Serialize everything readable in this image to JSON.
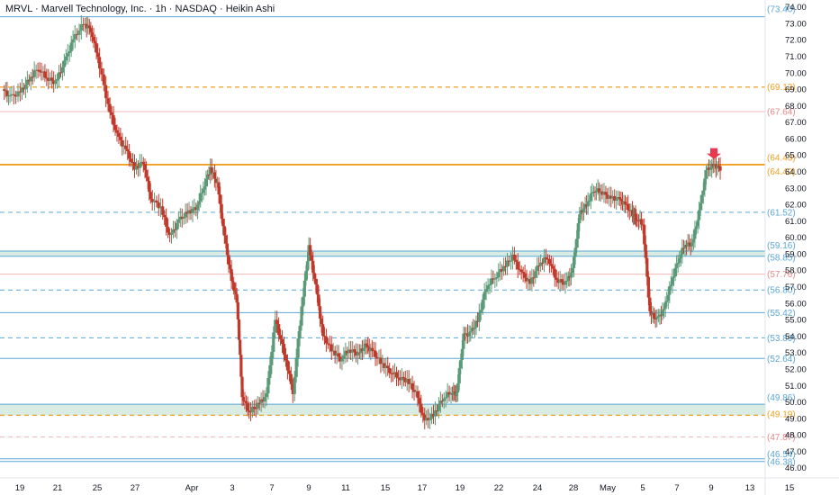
{
  "header": {
    "title": "MRVL · Marvell Technology, Inc. · 1h · NASDAQ · Heikin Ashi"
  },
  "colors": {
    "up": "#5b9a78",
    "down": "#c0392b",
    "blue_line": "#5aa6d6",
    "orange_line": "#f0a020",
    "pink_line": "#f2b8b8",
    "teal_zone": "#d8ece4",
    "arrow": "#e8384f"
  },
  "chart_data": {
    "type": "candlestick",
    "title": "MRVL · Marvell Technology, Inc. · 1h · NASDAQ · Heikin Ashi",
    "ylim": [
      45.6,
      74.2
    ],
    "y_ticks": [
      "74.00",
      "73.00",
      "72.00",
      "71.00",
      "70.00",
      "69.00",
      "68.00",
      "67.00",
      "66.00",
      "65.00",
      "64.00",
      "63.00",
      "62.00",
      "61.00",
      "60.00",
      "59.00",
      "58.00",
      "57.00",
      "56.00",
      "55.00",
      "54.00",
      "53.00",
      "52.00",
      "51.00",
      "50.00",
      "49.00",
      "48.00",
      "47.00",
      "46.00"
    ],
    "x_ticks": [
      "19",
      "21",
      "25",
      "27",
      "Apr",
      "3",
      "7",
      "9",
      "11",
      "15",
      "17",
      "19",
      "22",
      "24",
      "28",
      "May",
      "5",
      "7",
      "9",
      "13",
      "15"
    ],
    "zones": [
      {
        "from": 58.85,
        "to": 59.16
      },
      {
        "from": 49.19,
        "to": 49.86
      }
    ],
    "levels": [
      {
        "value": 73.4,
        "label": "(73.40)",
        "style": "solid",
        "color": "blue"
      },
      {
        "value": 69.13,
        "label": "(69.13)",
        "style": "dashed",
        "color": "orange"
      },
      {
        "value": 67.64,
        "label": "(67.64)",
        "style": "solid",
        "color": "pink"
      },
      {
        "value": 64.43,
        "label": "(64.43)",
        "style": "solid",
        "color": "orange"
      },
      {
        "value": 64.4,
        "label": "(64.40)",
        "style": "solid",
        "color": "orange"
      },
      {
        "value": 61.52,
        "label": "(61.52)",
        "style": "dashed",
        "color": "blue"
      },
      {
        "value": 59.16,
        "label": "(59.16)",
        "style": "solid",
        "color": "blue"
      },
      {
        "value": 58.85,
        "label": "(58.85)",
        "style": "solid",
        "color": "blue"
      },
      {
        "value": 57.76,
        "label": "(57.76)",
        "style": "solid",
        "color": "pink"
      },
      {
        "value": 56.8,
        "label": "(56.80)",
        "style": "dashed",
        "color": "blue"
      },
      {
        "value": 55.42,
        "label": "(55.42)",
        "style": "solid",
        "color": "blue"
      },
      {
        "value": 53.89,
        "label": "(53.89)",
        "style": "dashed",
        "color": "blue"
      },
      {
        "value": 52.64,
        "label": "(52.64)",
        "style": "solid",
        "color": "blue"
      },
      {
        "value": 49.86,
        "label": "(49.86)",
        "style": "solid",
        "color": "blue"
      },
      {
        "value": 49.19,
        "label": "(49.19)",
        "style": "dashed",
        "color": "orange"
      },
      {
        "value": 47.87,
        "label": "(47.87)",
        "style": "dashed",
        "color": "pink"
      },
      {
        "value": 46.54,
        "label": "(46.54)",
        "style": "solid",
        "color": "blue"
      },
      {
        "value": 46.38,
        "label": "(46.38)",
        "style": "solid",
        "color": "blue"
      }
    ],
    "series": [
      {
        "values": [
          {
            "t": 0.0,
            "c": 69.0
          },
          {
            "t": 0.4,
            "c": 68.5
          },
          {
            "t": 1.0,
            "c": 68.8
          },
          {
            "t": 1.5,
            "c": 69.6
          },
          {
            "t": 2.0,
            "c": 70.3
          },
          {
            "t": 2.5,
            "c": 69.7
          },
          {
            "t": 3.0,
            "c": 69.4
          },
          {
            "t": 3.5,
            "c": 70.6
          },
          {
            "t": 4.0,
            "c": 72.0
          },
          {
            "t": 4.6,
            "c": 73.0
          },
          {
            "t": 5.0,
            "c": 72.6
          },
          {
            "t": 5.4,
            "c": 71.0
          },
          {
            "t": 6.0,
            "c": 68.0
          },
          {
            "t": 6.5,
            "c": 66.2
          },
          {
            "t": 7.0,
            "c": 65.3
          },
          {
            "t": 7.5,
            "c": 64.2
          },
          {
            "t": 8.0,
            "c": 64.6
          },
          {
            "t": 8.4,
            "c": 62.4
          },
          {
            "t": 9.0,
            "c": 61.8
          },
          {
            "t": 9.5,
            "c": 60.0
          },
          {
            "t": 10.0,
            "c": 61.0
          },
          {
            "t": 10.5,
            "c": 61.5
          },
          {
            "t": 11.0,
            "c": 61.8
          },
          {
            "t": 11.4,
            "c": 63.0
          },
          {
            "t": 11.8,
            "c": 64.2
          },
          {
            "t": 12.2,
            "c": 63.2
          },
          {
            "t": 12.6,
            "c": 60.0
          },
          {
            "t": 13.0,
            "c": 57.4
          },
          {
            "t": 13.3,
            "c": 56.2
          },
          {
            "t": 13.6,
            "c": 50.4
          },
          {
            "t": 14.0,
            "c": 49.4
          },
          {
            "t": 14.5,
            "c": 49.8
          },
          {
            "t": 15.0,
            "c": 50.4
          },
          {
            "t": 15.5,
            "c": 55.0
          },
          {
            "t": 16.0,
            "c": 53.0
          },
          {
            "t": 16.5,
            "c": 50.6
          },
          {
            "t": 17.0,
            "c": 55.8
          },
          {
            "t": 17.4,
            "c": 59.4
          },
          {
            "t": 17.8,
            "c": 57.0
          },
          {
            "t": 18.2,
            "c": 54.0
          },
          {
            "t": 18.7,
            "c": 53.2
          },
          {
            "t": 19.2,
            "c": 52.6
          },
          {
            "t": 19.7,
            "c": 53.2
          },
          {
            "t": 20.2,
            "c": 52.9
          },
          {
            "t": 20.6,
            "c": 53.4
          },
          {
            "t": 21.0,
            "c": 53.1
          },
          {
            "t": 21.5,
            "c": 52.4
          },
          {
            "t": 22.0,
            "c": 51.9
          },
          {
            "t": 22.5,
            "c": 51.5
          },
          {
            "t": 23.0,
            "c": 51.3
          },
          {
            "t": 23.5,
            "c": 50.5
          },
          {
            "t": 24.0,
            "c": 48.8
          },
          {
            "t": 24.5,
            "c": 49.2
          },
          {
            "t": 25.0,
            "c": 50.2
          },
          {
            "t": 25.5,
            "c": 50.6
          },
          {
            "t": 25.8,
            "c": 50.5
          },
          {
            "t": 26.2,
            "c": 54.0
          },
          {
            "t": 26.6,
            "c": 54.2
          },
          {
            "t": 27.0,
            "c": 54.9
          },
          {
            "t": 27.5,
            "c": 57.0
          },
          {
            "t": 28.0,
            "c": 57.6
          },
          {
            "t": 28.5,
            "c": 58.2
          },
          {
            "t": 29.0,
            "c": 58.8
          },
          {
            "t": 29.5,
            "c": 57.8
          },
          {
            "t": 30.0,
            "c": 57.2
          },
          {
            "t": 30.5,
            "c": 58.4
          },
          {
            "t": 31.0,
            "c": 58.8
          },
          {
            "t": 31.5,
            "c": 57.4
          },
          {
            "t": 32.0,
            "c": 57.2
          },
          {
            "t": 32.4,
            "c": 58.0
          },
          {
            "t": 32.8,
            "c": 61.4
          },
          {
            "t": 33.2,
            "c": 62.0
          },
          {
            "t": 33.6,
            "c": 62.9
          },
          {
            "t": 34.0,
            "c": 62.8
          },
          {
            "t": 34.5,
            "c": 62.4
          },
          {
            "t": 35.0,
            "c": 62.3
          },
          {
            "t": 35.4,
            "c": 62.0
          },
          {
            "t": 35.8,
            "c": 61.4
          },
          {
            "t": 36.0,
            "c": 61.2
          },
          {
            "t": 36.4,
            "c": 60.8
          },
          {
            "t": 36.8,
            "c": 55.4
          },
          {
            "t": 37.2,
            "c": 55.0
          },
          {
            "t": 37.6,
            "c": 55.6
          },
          {
            "t": 38.0,
            "c": 57.2
          },
          {
            "t": 38.4,
            "c": 58.6
          },
          {
            "t": 38.8,
            "c": 59.6
          },
          {
            "t": 39.2,
            "c": 59.6
          },
          {
            "t": 39.6,
            "c": 61.5
          },
          {
            "t": 40.0,
            "c": 64.0
          },
          {
            "t": 40.4,
            "c": 64.4
          },
          {
            "t": 40.8,
            "c": 64.2
          }
        ]
      }
    ],
    "annotations": [
      {
        "type": "arrow-down",
        "near": "64.43"
      }
    ]
  }
}
